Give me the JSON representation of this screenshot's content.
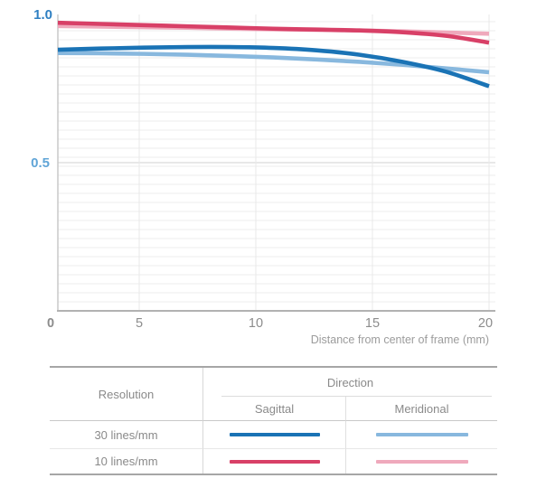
{
  "chart_data": {
    "type": "line",
    "title": "",
    "xlabel": "Distance from center of frame (mm)",
    "ylabel": "",
    "xlim": [
      0,
      20
    ],
    "ylim": [
      0,
      1.0
    ],
    "grid": true,
    "legend_position": "table-below",
    "x_tick_labels": [
      "0",
      "5",
      "10",
      "15",
      "20"
    ],
    "y_tick_labels": [
      "1.0",
      "0.5"
    ],
    "x": [
      0,
      2,
      4,
      6,
      8,
      10,
      12,
      14,
      16,
      18,
      20
    ],
    "series": [
      {
        "name": "10 lines/mm Meridional",
        "color": "#efa9bc",
        "values": [
          0.961,
          0.959,
          0.957,
          0.955,
          0.952,
          0.95,
          0.948,
          0.946,
          0.943,
          0.939,
          0.935
        ]
      },
      {
        "name": "30 lines/mm Meridional",
        "color": "#88b8de",
        "values": [
          0.87,
          0.869,
          0.867,
          0.864,
          0.86,
          0.855,
          0.848,
          0.84,
          0.83,
          0.818,
          0.805
        ]
      },
      {
        "name": "10 lines/mm Sagittal",
        "color": "#d84067",
        "values": [
          0.972,
          0.968,
          0.964,
          0.96,
          0.956,
          0.952,
          0.949,
          0.946,
          0.94,
          0.928,
          0.905
        ]
      },
      {
        "name": "30 lines/mm Sagittal",
        "color": "#1a73b5",
        "values": [
          0.881,
          0.885,
          0.888,
          0.89,
          0.89,
          0.887,
          0.879,
          0.864,
          0.84,
          0.807,
          0.758
        ]
      }
    ]
  },
  "axis_colors": {
    "zero_tick": "#3e92cb",
    "gray_tick": "#8c8c8c",
    "y_top_label": "#2e7fc2",
    "y_mid_label": "#61a5d7"
  },
  "table": {
    "resolution_header": "Resolution",
    "direction_header": "Direction",
    "sagittal_header": "Sagittal",
    "meridional_header": "Meridional",
    "rows": [
      {
        "label": "30 lines/mm"
      },
      {
        "label": "10 lines/mm"
      }
    ]
  },
  "colors": {
    "sagittal_30": "#1a73b5",
    "meridional_30": "#88b8de",
    "sagittal_10": "#d84067",
    "meridional_10": "#efa9bc"
  }
}
